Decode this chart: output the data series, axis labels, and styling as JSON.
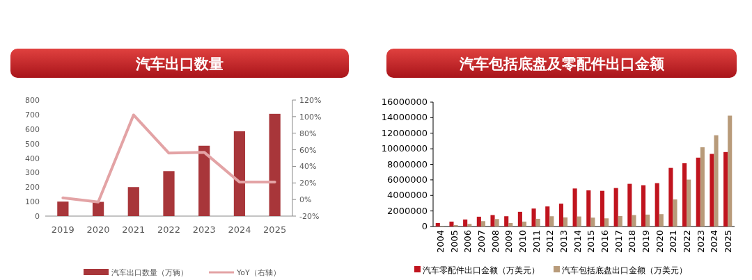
{
  "chart_data": [
    {
      "type": "bar",
      "title": "汽车出口数量",
      "categories": [
        "2019",
        "2020",
        "2021",
        "2022",
        "2023",
        "2024",
        "2025"
      ],
      "series": [
        {
          "name": "汽车出口数量（万辆）",
          "color": "#a8363a",
          "values": [
            100,
            98,
            200,
            310,
            485,
            585,
            705
          ]
        },
        {
          "name": "YoY（右轴）",
          "type": "line",
          "axis": "y2",
          "color": "#e3a3a5",
          "values": [
            2,
            -3,
            102,
            56,
            57,
            21,
            21
          ]
        }
      ],
      "ylim": [
        0,
        800
      ],
      "yticks": [
        0,
        100,
        200,
        300,
        400,
        500,
        600,
        700,
        800
      ],
      "y2lim": [
        -20,
        120
      ],
      "y2ticks": [
        {
          "value": -20,
          "label": "-20%"
        },
        {
          "value": 0,
          "label": "0%"
        },
        {
          "value": 20,
          "label": "20%"
        },
        {
          "value": 40,
          "label": "40%"
        },
        {
          "value": 60,
          "label": "60%"
        },
        {
          "value": 80,
          "label": "80%"
        },
        {
          "value": 100,
          "label": "100%"
        },
        {
          "value": 120,
          "label": "120%"
        }
      ],
      "grid": false,
      "legend": "bottom"
    },
    {
      "type": "bar",
      "title": "汽车包括底盘及零配件出口金额",
      "categories": [
        "2004",
        "2005",
        "2006",
        "2007",
        "2008",
        "2009",
        "2010",
        "2011",
        "2012",
        "2013",
        "2014",
        "2015",
        "2016",
        "2017",
        "2018",
        "2019",
        "2020",
        "2021",
        "2022",
        "2023",
        "2024",
        "2025"
      ],
      "series": [
        {
          "name": "汽车零配件出口金额（万美元）",
          "color": "#c0141e",
          "values": [
            450000,
            630000,
            900000,
            1260000,
            1470000,
            1320000,
            1890000,
            2310000,
            2580000,
            2940000,
            4890000,
            4650000,
            4590000,
            4950000,
            5490000,
            5310000,
            5580000,
            7540000,
            8140000,
            8860000,
            9340000,
            9580000
          ]
        },
        {
          "name": "汽车包括底盘出口金额（万美元）",
          "color": "#b89b7a",
          "values": [
            50000,
            180000,
            330000,
            690000,
            960000,
            450000,
            630000,
            990000,
            1320000,
            1170000,
            1290000,
            1140000,
            1050000,
            1350000,
            1470000,
            1530000,
            1590000,
            3480000,
            6030000,
            10200000,
            11740000,
            14260000
          ]
        }
      ],
      "ylim": [
        0,
        16000000
      ],
      "yticks": [
        0,
        2000000,
        4000000,
        6000000,
        8000000,
        10000000,
        12000000,
        14000000,
        16000000
      ],
      "grid": false,
      "legend": "bottom"
    }
  ]
}
